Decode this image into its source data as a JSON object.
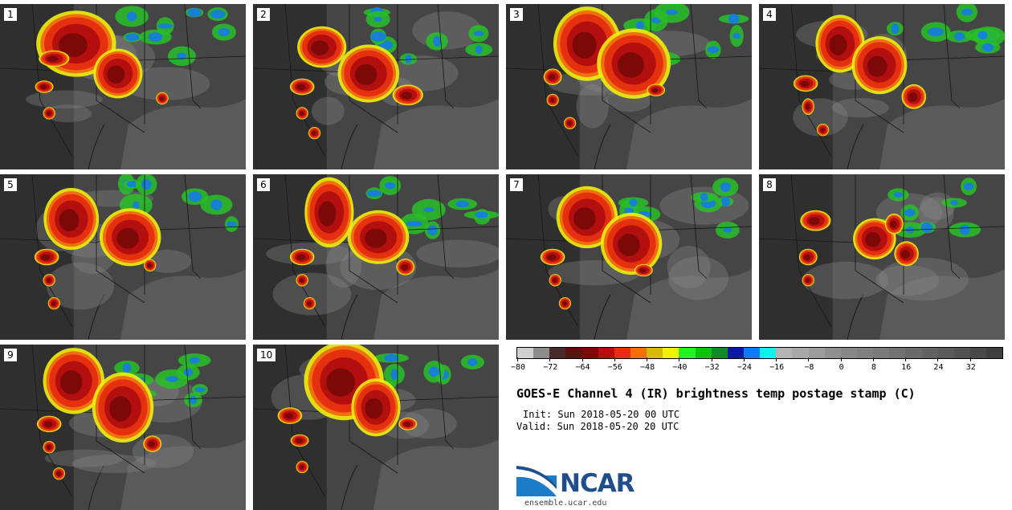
{
  "figure": {
    "title": "GOES-E Channel 4 (IR) brightness temp postage stamp (C)",
    "init_line": "Init: Sun 2018-05-20 00 UTC",
    "valid_line": "Valid: Sun 2018-05-20 20 UTC"
  },
  "panels": [
    {
      "label": "1",
      "storms": [
        [
          0.31,
          0.24,
          0.13,
          0.16
        ],
        [
          0.48,
          0.42,
          0.08,
          0.12
        ],
        [
          0.22,
          0.33,
          0.05,
          0.04
        ],
        [
          0.18,
          0.5,
          0.03,
          0.03
        ],
        [
          0.2,
          0.66,
          0.02,
          0.03
        ],
        [
          0.66,
          0.57,
          0.02,
          0.03
        ]
      ]
    },
    {
      "label": "2",
      "storms": [
        [
          0.28,
          0.26,
          0.08,
          0.1
        ],
        [
          0.47,
          0.42,
          0.1,
          0.14
        ],
        [
          0.63,
          0.55,
          0.05,
          0.05
        ],
        [
          0.2,
          0.5,
          0.04,
          0.04
        ],
        [
          0.2,
          0.66,
          0.02,
          0.03
        ],
        [
          0.25,
          0.78,
          0.02,
          0.03
        ]
      ]
    },
    {
      "label": "3",
      "storms": [
        [
          0.33,
          0.24,
          0.11,
          0.18
        ],
        [
          0.52,
          0.36,
          0.12,
          0.17
        ],
        [
          0.19,
          0.44,
          0.03,
          0.04
        ],
        [
          0.19,
          0.58,
          0.02,
          0.03
        ],
        [
          0.26,
          0.72,
          0.02,
          0.03
        ],
        [
          0.61,
          0.52,
          0.03,
          0.03
        ]
      ]
    },
    {
      "label": "4",
      "storms": [
        [
          0.33,
          0.24,
          0.08,
          0.14
        ],
        [
          0.49,
          0.37,
          0.09,
          0.14
        ],
        [
          0.63,
          0.56,
          0.04,
          0.06
        ],
        [
          0.19,
          0.48,
          0.04,
          0.04
        ],
        [
          0.2,
          0.62,
          0.02,
          0.04
        ],
        [
          0.26,
          0.76,
          0.02,
          0.03
        ]
      ]
    },
    {
      "label": "5",
      "storms": [
        [
          0.29,
          0.27,
          0.09,
          0.15
        ],
        [
          0.53,
          0.38,
          0.1,
          0.14
        ],
        [
          0.19,
          0.5,
          0.04,
          0.04
        ],
        [
          0.2,
          0.64,
          0.02,
          0.03
        ],
        [
          0.22,
          0.78,
          0.02,
          0.03
        ],
        [
          0.61,
          0.55,
          0.02,
          0.03
        ]
      ]
    },
    {
      "label": "6",
      "storms": [
        [
          0.31,
          0.23,
          0.08,
          0.17
        ],
        [
          0.51,
          0.38,
          0.1,
          0.13
        ],
        [
          0.2,
          0.5,
          0.04,
          0.04
        ],
        [
          0.2,
          0.64,
          0.02,
          0.03
        ],
        [
          0.62,
          0.56,
          0.03,
          0.04
        ],
        [
          0.23,
          0.78,
          0.02,
          0.03
        ]
      ]
    },
    {
      "label": "7",
      "storms": [
        [
          0.33,
          0.26,
          0.1,
          0.15
        ],
        [
          0.51,
          0.42,
          0.1,
          0.15
        ],
        [
          0.19,
          0.5,
          0.04,
          0.04
        ],
        [
          0.2,
          0.64,
          0.02,
          0.03
        ],
        [
          0.24,
          0.78,
          0.02,
          0.03
        ],
        [
          0.56,
          0.58,
          0.03,
          0.03
        ]
      ]
    },
    {
      "label": "8",
      "storms": [
        [
          0.23,
          0.28,
          0.05,
          0.05
        ],
        [
          0.47,
          0.39,
          0.07,
          0.1
        ],
        [
          0.6,
          0.48,
          0.04,
          0.06
        ],
        [
          0.2,
          0.5,
          0.03,
          0.04
        ],
        [
          0.2,
          0.64,
          0.02,
          0.03
        ],
        [
          0.55,
          0.3,
          0.03,
          0.05
        ]
      ]
    },
    {
      "label": "9",
      "storms": [
        [
          0.3,
          0.22,
          0.1,
          0.16
        ],
        [
          0.5,
          0.38,
          0.1,
          0.17
        ],
        [
          0.2,
          0.48,
          0.04,
          0.04
        ],
        [
          0.2,
          0.62,
          0.02,
          0.03
        ],
        [
          0.24,
          0.78,
          0.02,
          0.03
        ],
        [
          0.62,
          0.6,
          0.03,
          0.04
        ]
      ]
    },
    {
      "label": "10",
      "storms": [
        [
          0.37,
          0.22,
          0.13,
          0.19
        ],
        [
          0.5,
          0.38,
          0.08,
          0.14
        ],
        [
          0.15,
          0.43,
          0.04,
          0.04
        ],
        [
          0.19,
          0.58,
          0.03,
          0.03
        ],
        [
          0.2,
          0.74,
          0.02,
          0.03
        ],
        [
          0.63,
          0.48,
          0.03,
          0.03
        ]
      ]
    }
  ],
  "colorbar": {
    "ticks": [
      "−80",
      "−72",
      "−64",
      "−56",
      "−48",
      "−40",
      "−32",
      "−24",
      "−16",
      "−8",
      "0",
      "8",
      "16",
      "24",
      "32"
    ],
    "tick_values": [
      -80,
      -72,
      -64,
      -56,
      -48,
      -40,
      -32,
      -24,
      -16,
      -8,
      0,
      8,
      16,
      24,
      32
    ],
    "min": -80,
    "max": 40,
    "step": 4,
    "colors": [
      "#cfcfcf",
      "#8c8c8c",
      "#4a2a2a",
      "#5e1111",
      "#7d0808",
      "#b30f0f",
      "#e53010",
      "#f07010",
      "#d9b80c",
      "#f0f00c",
      "#28f028",
      "#10c010",
      "#108a28",
      "#0a1aa0",
      "#1478f0",
      "#14f0f0",
      "#b4b4b4",
      "#a8a8a8",
      "#9c9c9c",
      "#909090",
      "#888888",
      "#808080",
      "#7a7a7a",
      "#727272",
      "#6a6a6a",
      "#626262",
      "#5a5a5a",
      "#525252",
      "#484848",
      "#3e3e3e"
    ]
  },
  "branding": {
    "logo_text": "NCAR",
    "website": "ensemble.ucar.edu"
  }
}
